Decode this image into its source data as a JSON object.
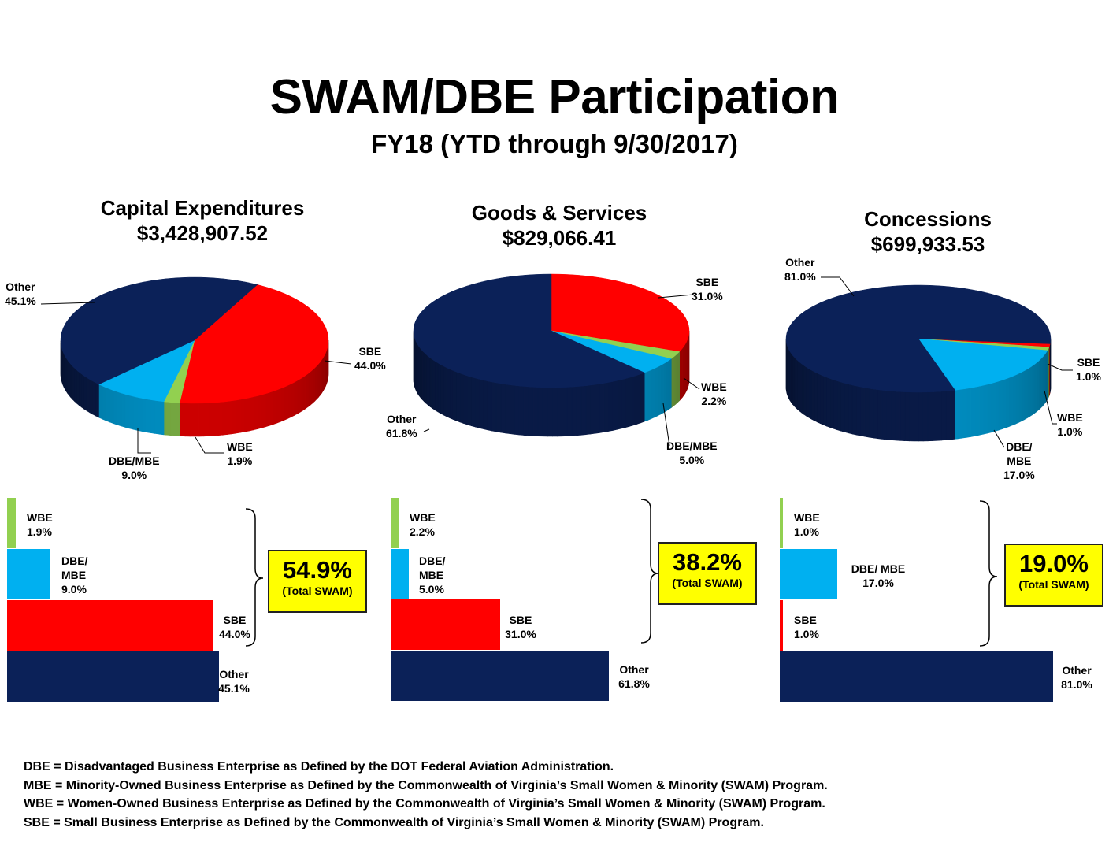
{
  "header": {
    "title": "SWAM/DBE Participation",
    "subtitle": "FY18 (YTD through 9/30/2017)"
  },
  "colors": {
    "other": "#0b2158",
    "sbe": "#ff0000",
    "wbe": "#92d050",
    "dbe_mbe": "#00b0f0",
    "total_box": "#ffff00"
  },
  "chart_data": [
    {
      "type": "pie",
      "title": "Capital Expenditures",
      "subtitle": "$3,428,907.52",
      "slices": [
        {
          "name": "SBE",
          "value": 44.0,
          "label": "44.0%"
        },
        {
          "name": "WBE",
          "value": 1.9,
          "label": "1.9%"
        },
        {
          "name": "DBE/MBE",
          "value": 9.0,
          "label": "9.0%"
        },
        {
          "name": "Other",
          "value": 45.1,
          "label": "45.1%"
        }
      ],
      "bars": [
        {
          "name": "WBE",
          "value": 1.9,
          "label": "1.9%"
        },
        {
          "name": "DBE/ MBE",
          "value": 9.0,
          "label": "9.0%"
        },
        {
          "name": "SBE",
          "value": 44.0,
          "label": "44.0%"
        },
        {
          "name": "Other",
          "value": 45.1,
          "label": "45.1%"
        }
      ],
      "total_swam": "54.9%",
      "total_caption": "(Total SWAM)"
    },
    {
      "type": "pie",
      "title": "Goods & Services",
      "subtitle": "$829,066.41",
      "slices": [
        {
          "name": "SBE",
          "value": 31.0,
          "label": "31.0%"
        },
        {
          "name": "WBE",
          "value": 2.2,
          "label": "2.2%"
        },
        {
          "name": "DBE/MBE",
          "value": 5.0,
          "label": "5.0%"
        },
        {
          "name": "Other",
          "value": 61.8,
          "label": "61.8%"
        }
      ],
      "bars": [
        {
          "name": "WBE",
          "value": 2.2,
          "label": "2.2%"
        },
        {
          "name": "DBE/ MBE",
          "value": 5.0,
          "label": "5.0%"
        },
        {
          "name": "SBE",
          "value": 31.0,
          "label": "31.0%"
        },
        {
          "name": "Other",
          "value": 61.8,
          "label": "61.8%"
        }
      ],
      "total_swam": "38.2%",
      "total_caption": "(Total SWAM)"
    },
    {
      "type": "pie",
      "title": "Concessions",
      "subtitle": "$699,933.53",
      "slices": [
        {
          "name": "SBE",
          "value": 1.0,
          "label": "1.0%"
        },
        {
          "name": "WBE",
          "value": 1.0,
          "label": "1.0%"
        },
        {
          "name": "DBE/ MBE",
          "value": 17.0,
          "label": "17.0%"
        },
        {
          "name": "Other",
          "value": 81.0,
          "label": "81.0%"
        }
      ],
      "bars": [
        {
          "name": "WBE",
          "value": 1.0,
          "label": "1.0%"
        },
        {
          "name": "DBE/ MBE",
          "value": 17.0,
          "label": "17.0%"
        },
        {
          "name": "SBE",
          "value": 1.0,
          "label": "1.0%"
        },
        {
          "name": "Other",
          "value": 81.0,
          "label": "81.0%"
        }
      ],
      "total_swam": "19.0%",
      "total_caption": "(Total SWAM)"
    }
  ],
  "definitions": [
    "DBE = Disadvantaged Business Enterprise as Defined by the DOT Federal Aviation Administration.",
    "MBE = Minority-Owned Business Enterprise as Defined by the Commonwealth of Virginia’s Small Women & Minority (SWAM) Program.",
    "WBE = Women-Owned Business Enterprise as Defined by the Commonwealth of Virginia’s Small Women & Minority (SWAM) Program.",
    "SBE = Small Business Enterprise as Defined by the Commonwealth of Virginia’s Small Women & Minority (SWAM) Program."
  ]
}
